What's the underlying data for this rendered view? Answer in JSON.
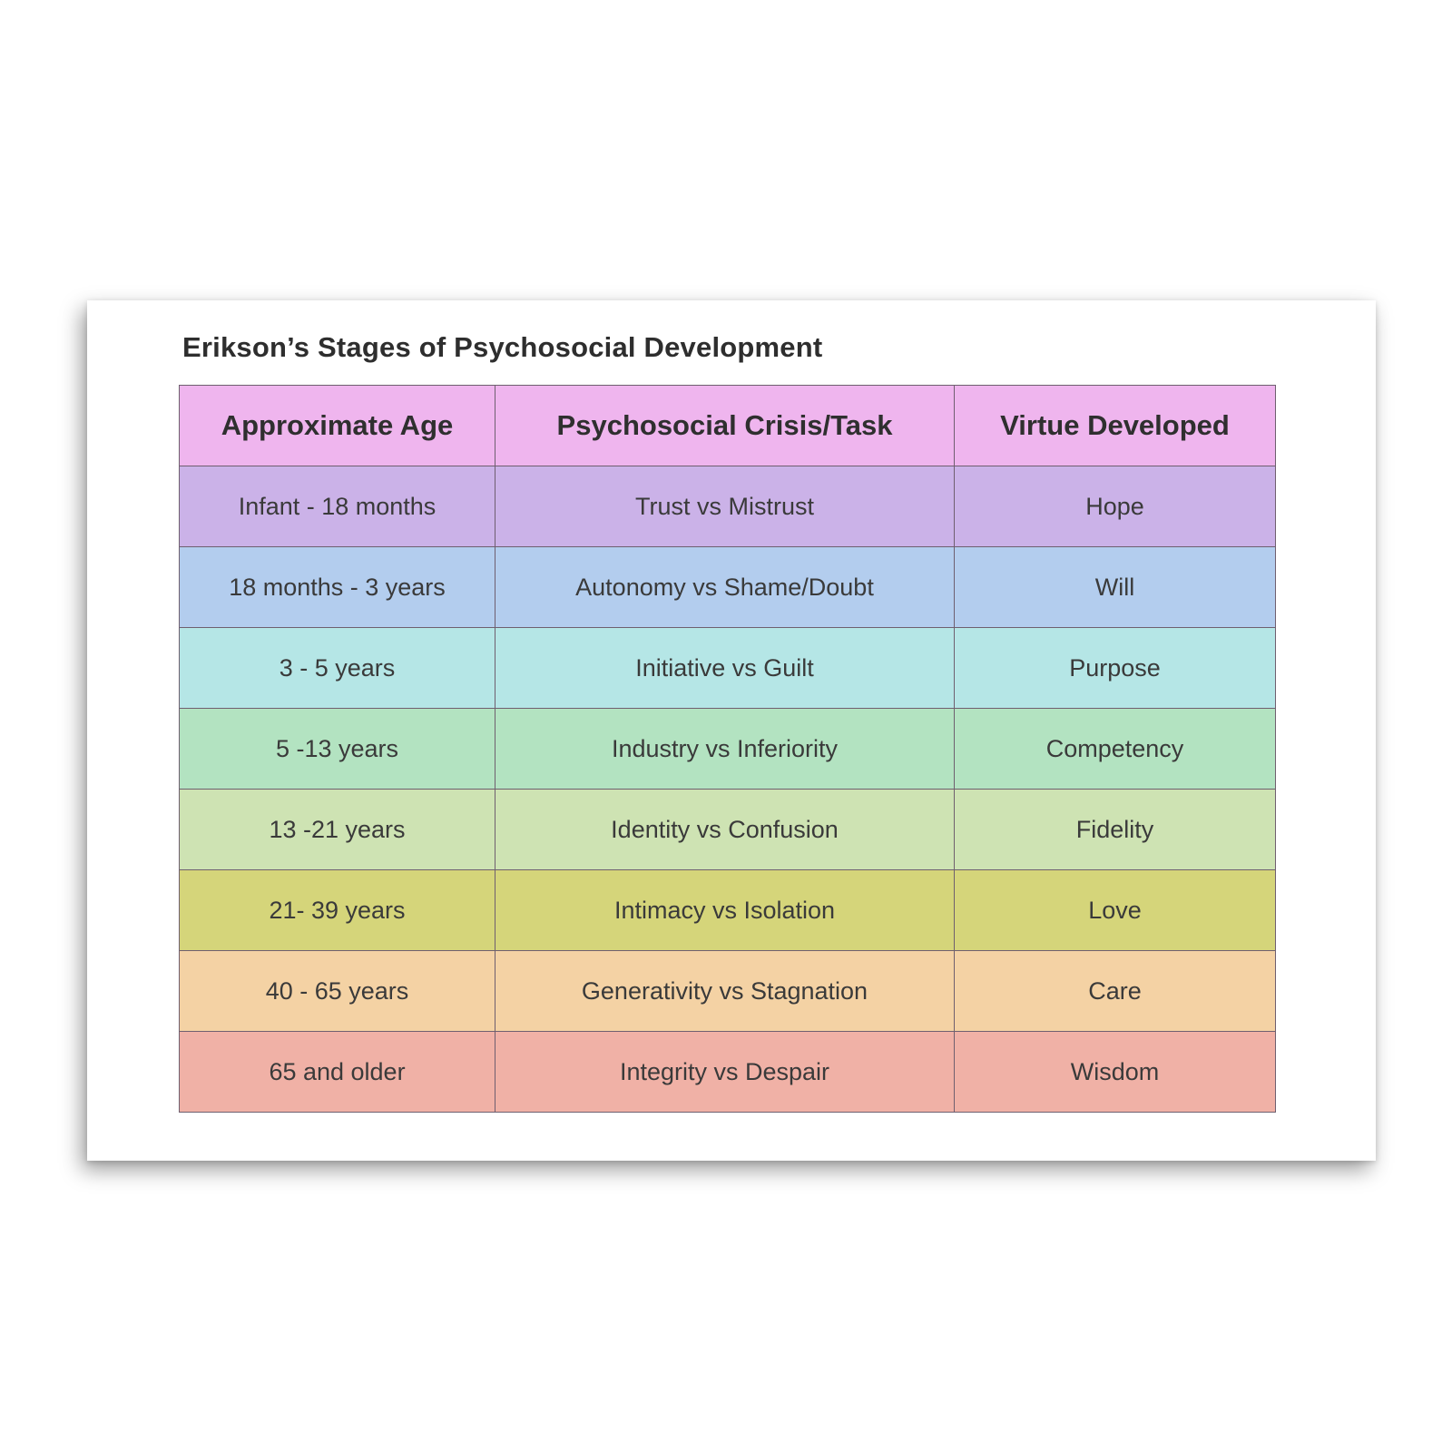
{
  "title": "Erikson’s Stages of Psychosocial Development",
  "headers": [
    "Approximate Age",
    "Psychosocial Crisis/Task",
    "Virtue Developed"
  ],
  "header_color": "#efb5ee",
  "rows": [
    {
      "age": "Infant - 18 months",
      "crisis": "Trust vs Mistrust",
      "virtue": "Hope",
      "color": "#cbb2e8"
    },
    {
      "age": "18 months - 3 years",
      "crisis": "Autonomy vs Shame/Doubt",
      "virtue": "Will",
      "color": "#b3cdee"
    },
    {
      "age": "3 - 5 years",
      "crisis": "Initiative vs Guilt",
      "virtue": "Purpose",
      "color": "#b5e6e6"
    },
    {
      "age": "5 -13 years",
      "crisis": "Industry vs Inferiority",
      "virtue": "Competency",
      "color": "#b3e3c1"
    },
    {
      "age": "13 -21 years",
      "crisis": "Identity vs Confusion",
      "virtue": "Fidelity",
      "color": "#cee3b3"
    },
    {
      "age": "21- 39 years",
      "crisis": "Intimacy vs Isolation",
      "virtue": "Love",
      "color": "#d5d57a"
    },
    {
      "age": "40 - 65 years",
      "crisis": "Generativity vs Stagnation",
      "virtue": "Care",
      "color": "#f4d2a4"
    },
    {
      "age": "65 and older",
      "crisis": "Integrity vs Despair",
      "virtue": "Wisdom",
      "color": "#f0b1a6"
    }
  ]
}
